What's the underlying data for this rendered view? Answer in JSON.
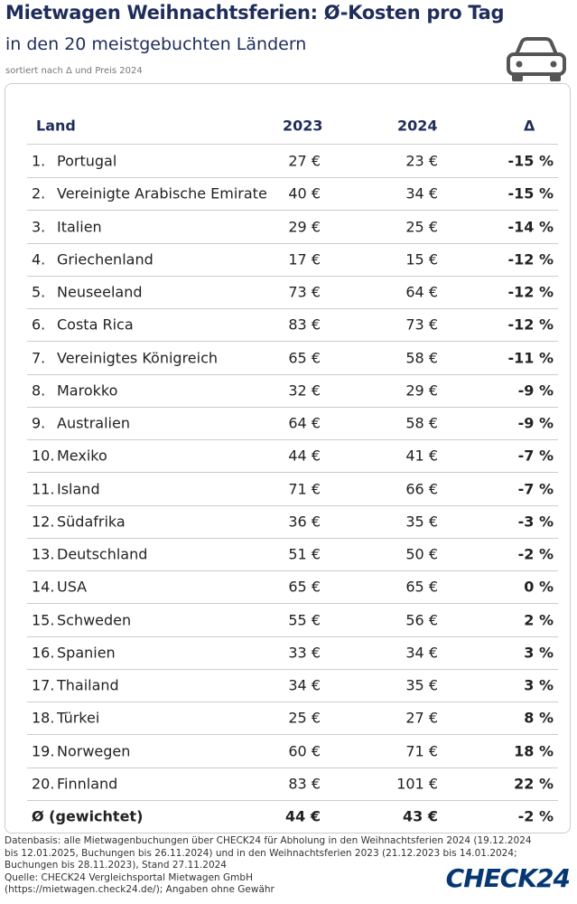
{
  "header": {
    "title": "Mietwagen Weihnachtsferien: Ø-Kosten pro Tag",
    "subtitle": "in den 20 meistgebuchten Ländern",
    "note": "sortiert nach Δ und Preis 2024"
  },
  "table": {
    "columns": [
      "Land",
      "2023",
      "2024",
      "Δ"
    ],
    "rows": [
      [
        "1.",
        "Portugal",
        "27 €",
        "23 €",
        "-15 %"
      ],
      [
        "2.",
        "Vereinigte Arabische Emirate",
        "40 €",
        "34 €",
        "-15 %"
      ],
      [
        "3.",
        "Italien",
        "29 €",
        "25 €",
        "-14 %"
      ],
      [
        "4.",
        "Griechenland",
        "17 €",
        "15 €",
        "-12 %"
      ],
      [
        "5.",
        "Neuseeland",
        "73 €",
        "64 €",
        "-12 %"
      ],
      [
        "6.",
        "Costa Rica",
        "83 €",
        "73 €",
        "-12 %"
      ],
      [
        "7.",
        "Vereinigtes Königreich",
        "65 €",
        "58 €",
        "-11 %"
      ],
      [
        "8.",
        "Marokko",
        "32 €",
        "29 €",
        "-9 %"
      ],
      [
        "9.",
        "Australien",
        "64 €",
        "58 €",
        "-9 %"
      ],
      [
        "10.",
        "Mexiko",
        "44 €",
        "41 €",
        "-7 %"
      ],
      [
        "11.",
        "Island",
        "71 €",
        "66 €",
        "-7 %"
      ],
      [
        "12.",
        "Südafrika",
        "36 €",
        "35 €",
        "-3 %"
      ],
      [
        "13.",
        "Deutschland",
        "51 €",
        "50 €",
        "-2 %"
      ],
      [
        "14.",
        "USA",
        "65 €",
        "65 €",
        "0 %"
      ],
      [
        "15.",
        "Schweden",
        "55 €",
        "56 €",
        "2 %"
      ],
      [
        "16.",
        "Spanien",
        "33 €",
        "34 €",
        "3 %"
      ],
      [
        "17.",
        "Thailand",
        "34 €",
        "35 €",
        "3 %"
      ],
      [
        "18.",
        "Türkei",
        "25 €",
        "27 €",
        "8 %"
      ],
      [
        "19.",
        "Norwegen",
        "60 €",
        "71 €",
        "18 %"
      ],
      [
        "20.",
        "Finnland",
        "83 €",
        "101 €",
        "22 %"
      ]
    ],
    "footer": [
      "Ø (gewichtet)",
      "44 €",
      "43 €",
      "-2 %"
    ]
  },
  "footnote": [
    "Datenbasis: alle Mietwagenbuchungen über CHECK24 für Abholung in den Weihnachtsferien 2024 (19.12.2024",
    "bis 12.01.2025, Buchungen bis 26.11.2024) und in den Weihnachtsferien 2023 (21.12.2023 bis 14.01.2024;",
    "Buchungen bis 28.11.2023), Stand 27.11.2024",
    "Quelle: CHECK24 Vergleichsportal Mietwagen GmbH",
    "(https://mietwagen.check24.de/); Angaben ohne Gewähr"
  ],
  "logo": "CHECK24"
}
